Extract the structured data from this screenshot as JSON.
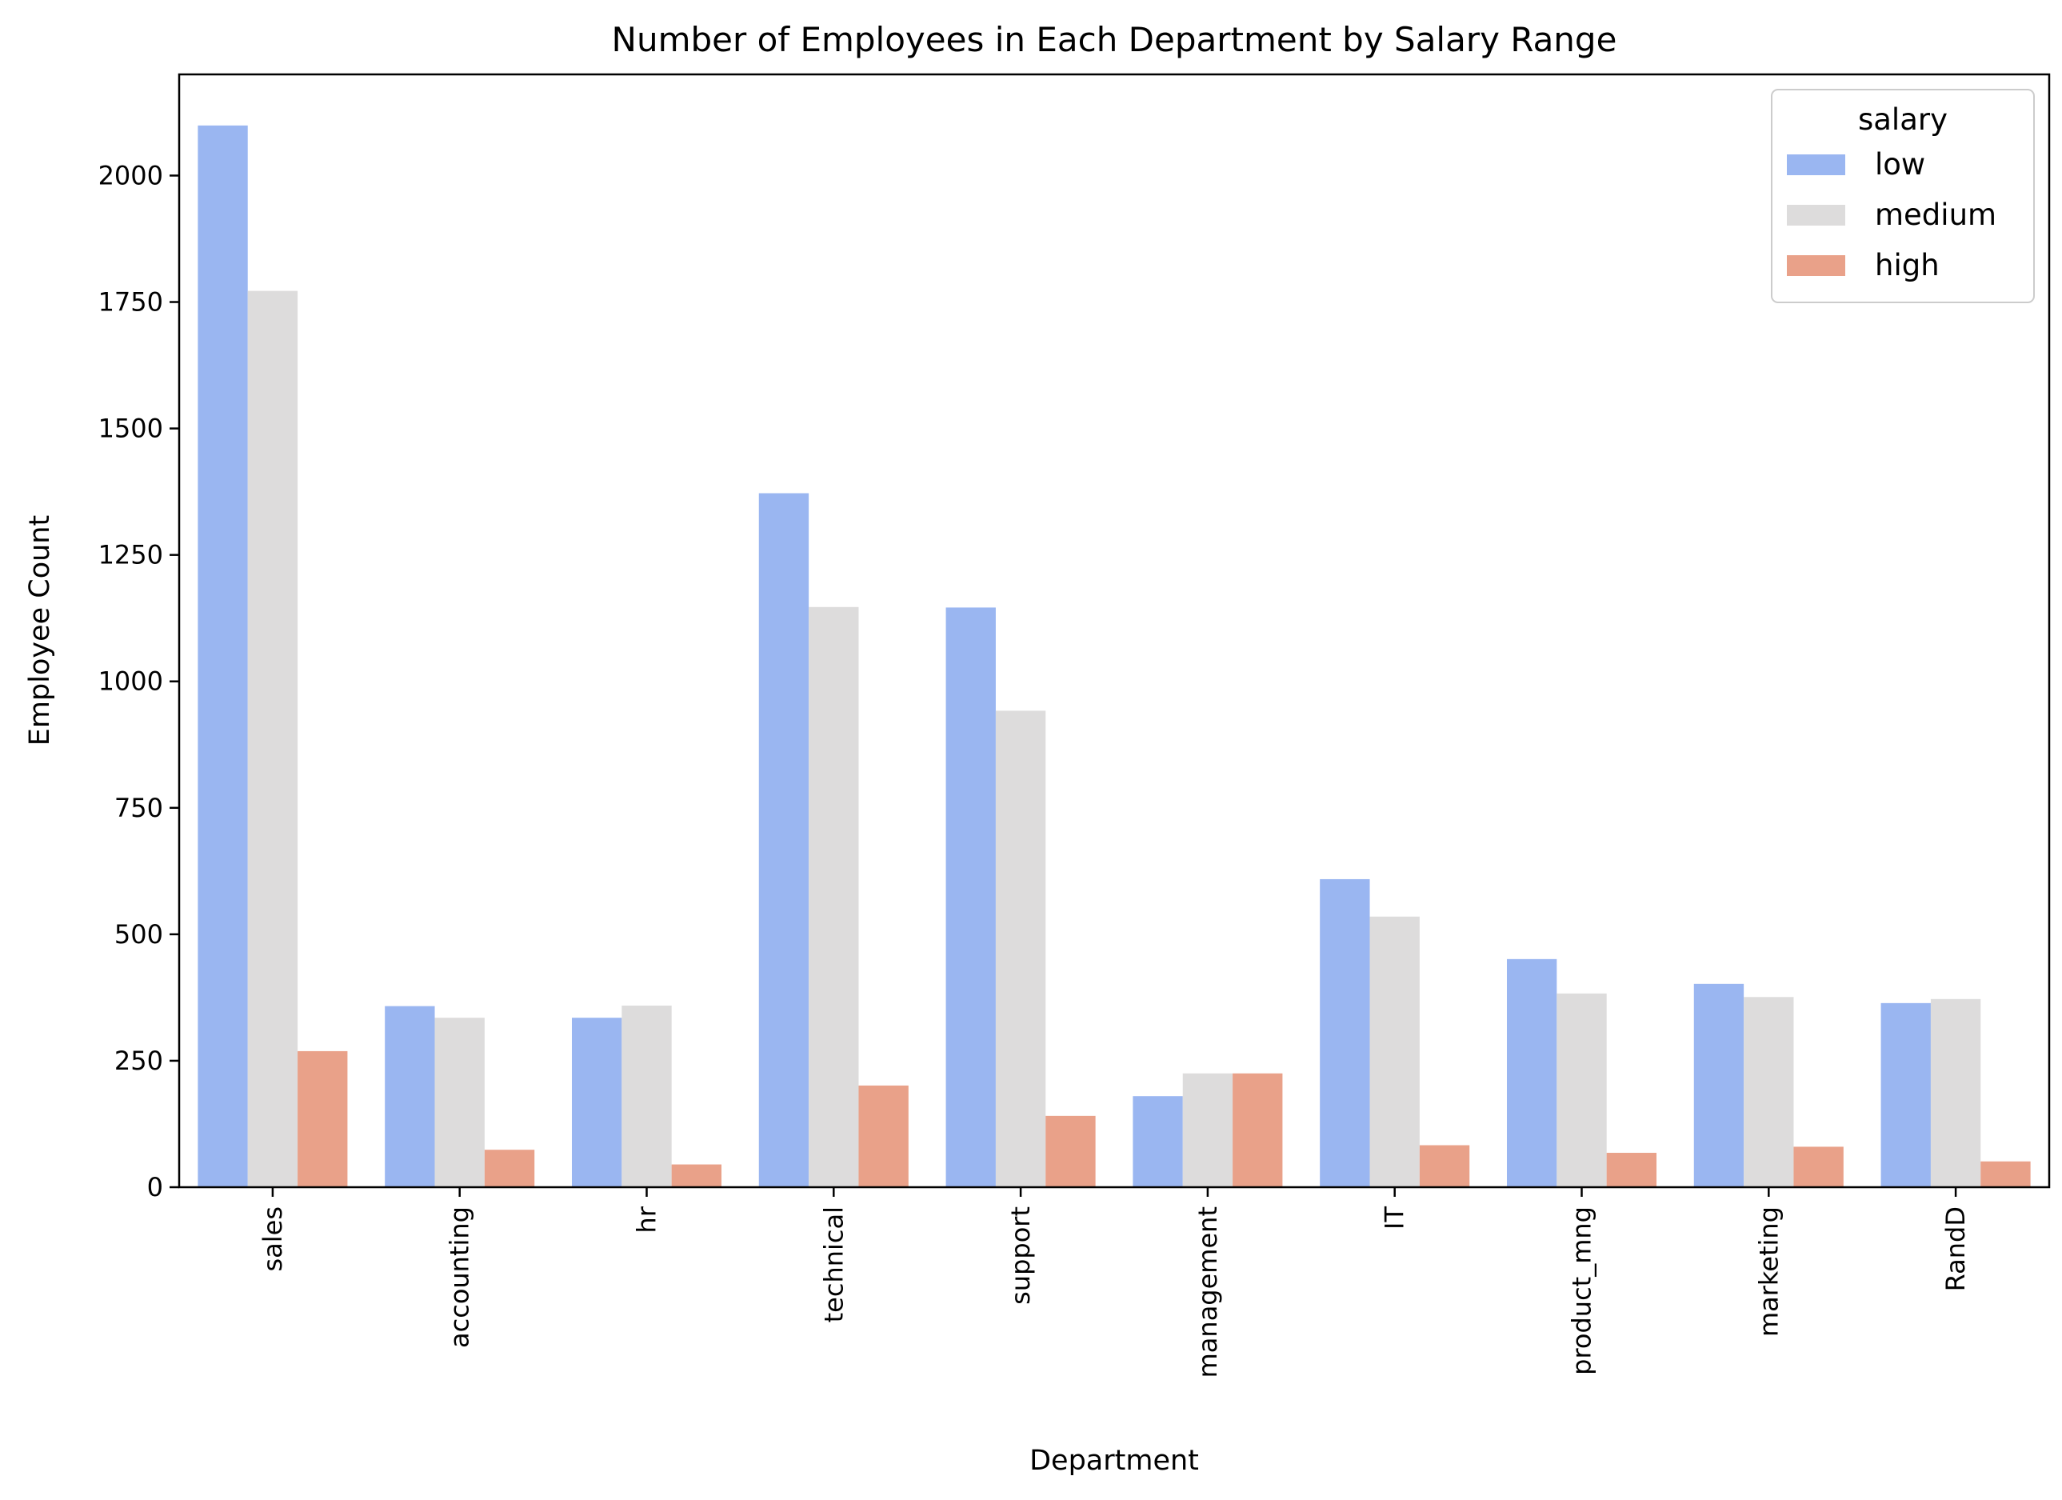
{
  "chart_data": {
    "type": "bar",
    "title": "Number of Employees in Each Department by Salary Range",
    "xlabel": "Department",
    "ylabel": "Employee Count",
    "categories": [
      "sales",
      "accounting",
      "hr",
      "technical",
      "support",
      "management",
      "IT",
      "product_mng",
      "marketing",
      "RandD"
    ],
    "ylim": [
      0,
      2200
    ],
    "yticks": [
      0,
      250,
      500,
      750,
      1000,
      1250,
      1500,
      1750,
      2000
    ],
    "grid": false,
    "legend": {
      "title": "salary",
      "placement": "top-right"
    },
    "series": [
      {
        "name": "low",
        "color": "#9ab6f1",
        "values": [
          2099,
          358,
          335,
          1372,
          1146,
          180,
          609,
          451,
          402,
          364
        ]
      },
      {
        "name": "medium",
        "color": "#dddcdc",
        "values": [
          1772,
          335,
          359,
          1147,
          942,
          225,
          535,
          383,
          376,
          372
        ]
      },
      {
        "name": "high",
        "color": "#e9a189",
        "values": [
          269,
          74,
          45,
          201,
          141,
          225,
          83,
          68,
          80,
          51
        ]
      }
    ]
  }
}
